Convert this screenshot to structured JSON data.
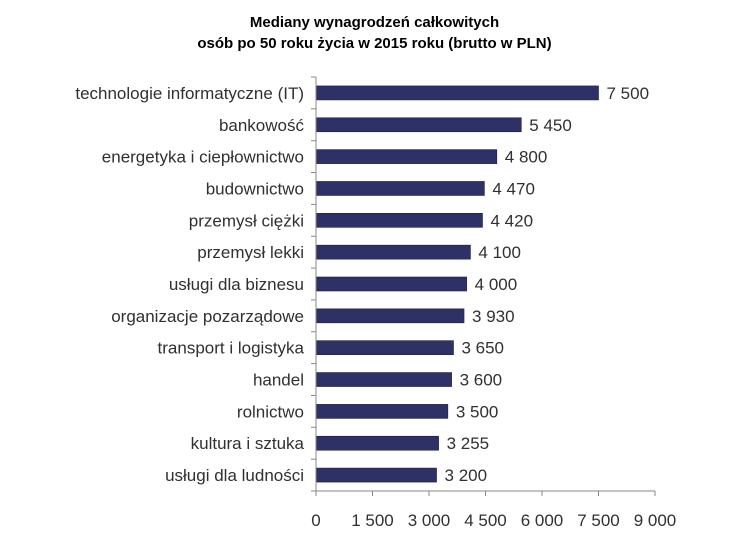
{
  "chart_data": {
    "type": "bar",
    "orientation": "horizontal",
    "title": "Mediany wynagrodzeń całkowitych",
    "subtitle": "osób po 50 roku życia w 2015 roku (brutto w PLN)",
    "categories": [
      "technologie informatyczne (IT)",
      "bankowość",
      "energetyka i ciepłownictwo",
      "budownictwo",
      "przemysł ciężki",
      "przemysł lekki",
      "usługi dla biznesu",
      "organizacje pozarządowe",
      "transport i logistyka",
      "handel",
      "rolnictwo",
      "kultura i sztuka",
      "usługi dla ludności"
    ],
    "values": [
      7500,
      5450,
      4800,
      4470,
      4420,
      4100,
      4000,
      3930,
      3650,
      3600,
      3500,
      3255,
      3200
    ],
    "value_labels": [
      "7 500",
      "5 450",
      "4 800",
      "4 470",
      "4 420",
      "4 100",
      "4 000",
      "3 930",
      "3 650",
      "3 600",
      "3 500",
      "3 255",
      "3 200"
    ],
    "xlim": [
      0,
      9000
    ],
    "x_ticks": [
      0,
      1500,
      3000,
      4500,
      6000,
      7500,
      9000
    ],
    "x_tick_labels": [
      "0",
      "1 500",
      "3 000",
      "4 500",
      "6 000",
      "7 500",
      "9 000"
    ],
    "bar_color": "#2e3166",
    "grid": false,
    "legend": "none"
  }
}
